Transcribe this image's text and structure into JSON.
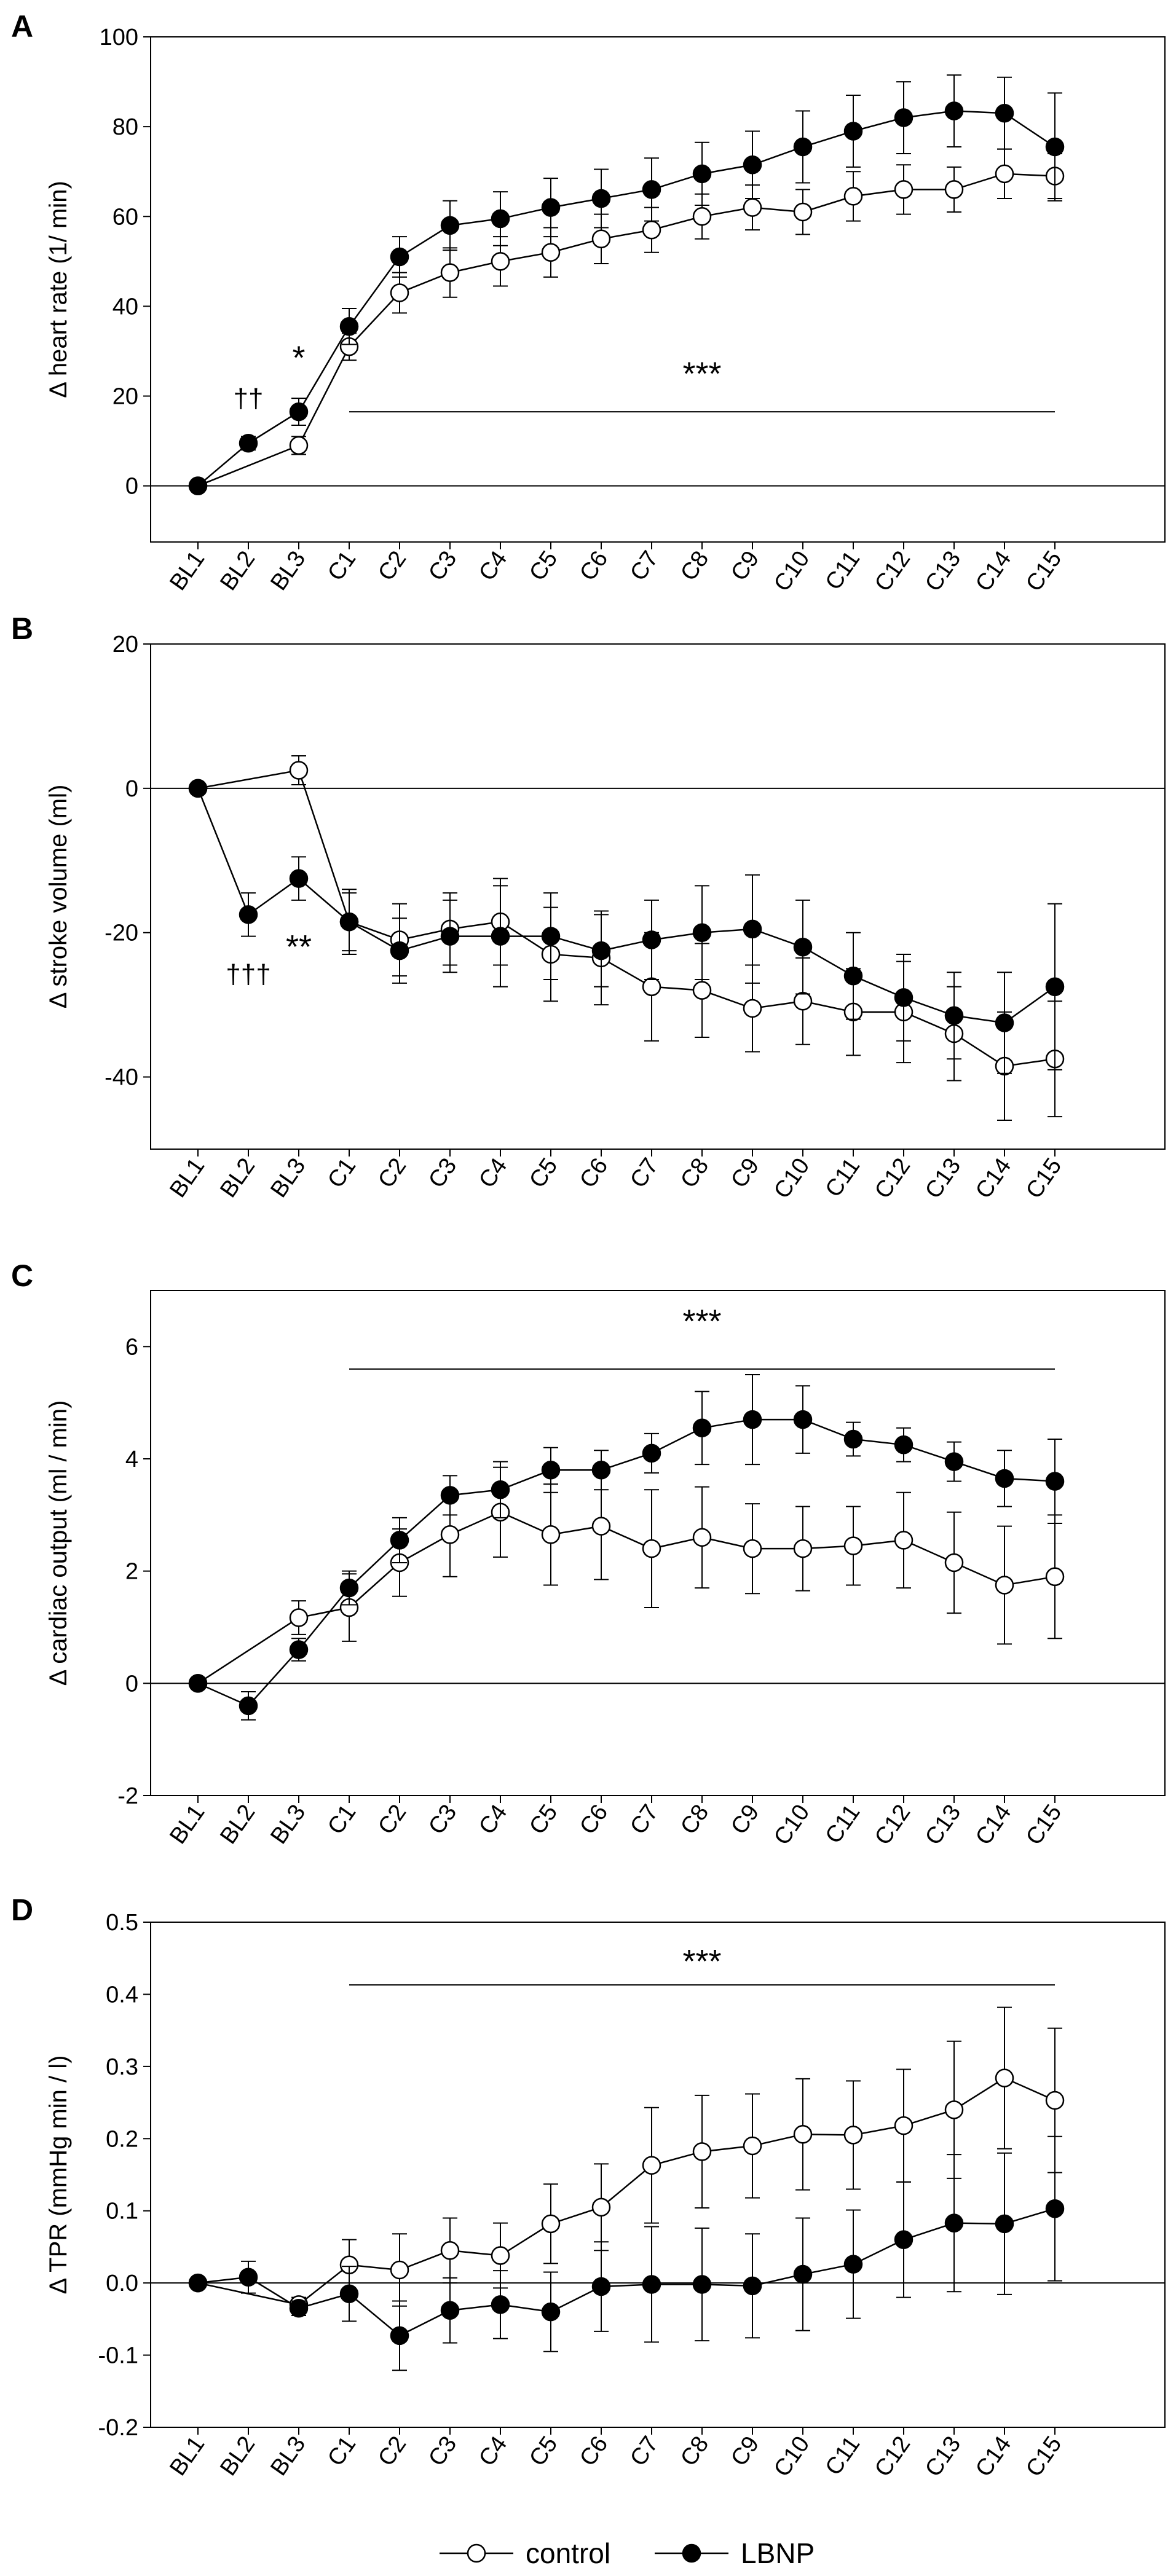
{
  "chart_data": [
    {
      "id": "A",
      "type": "line",
      "panel_label": "A",
      "ylabel": "Δ heart rate (1/ min)",
      "ylim": [
        -12.5,
        100
      ],
      "yticks": [
        0,
        20,
        40,
        60,
        80,
        100
      ],
      "categories": [
        "BL1",
        "BL2",
        "BL3",
        "C1",
        "C2",
        "C3",
        "C4",
        "C5",
        "C6",
        "C7",
        "C8",
        "C9",
        "C10",
        "C11",
        "C12",
        "C13",
        "C14",
        "C15"
      ],
      "series": [
        {
          "name": "control",
          "fill": "#ffffff",
          "values": [
            0,
            null,
            9,
            31,
            43,
            47.5,
            50,
            52,
            55,
            57,
            60,
            62,
            61,
            64.5,
            66,
            66,
            69.5,
            69
          ],
          "err": [
            0,
            null,
            2,
            3,
            4.5,
            5.5,
            5.5,
            5.5,
            5.5,
            5,
            5,
            5,
            5,
            5.5,
            5.5,
            5,
            5.5,
            5
          ]
        },
        {
          "name": "LBNP",
          "fill": "#000000",
          "values": [
            0,
            9.5,
            16.5,
            35.5,
            51,
            58,
            59.5,
            62,
            64,
            66,
            69.5,
            71.5,
            75.5,
            79,
            82,
            83.5,
            83,
            75.5
          ],
          "err": [
            0,
            1.5,
            3,
            4,
            4.5,
            5.5,
            6,
            6.5,
            6.5,
            7,
            7,
            7.5,
            8,
            8,
            8,
            8,
            8,
            12
          ]
        }
      ],
      "annotations": [
        {
          "text": "††",
          "category": "BL2",
          "y": 17.5,
          "style": "small"
        },
        {
          "text": "*",
          "category": "BL3",
          "y": 26,
          "style": "big"
        },
        {
          "text": "***",
          "category": "C8",
          "y": 22.5,
          "style": "big"
        }
      ],
      "sig_line": {
        "from": "C1",
        "to": "C15",
        "y": 16.5
      }
    },
    {
      "id": "B",
      "type": "line",
      "panel_label": "B",
      "ylabel": "Δ stroke volume (ml)",
      "ylim": [
        -50,
        20
      ],
      "yticks": [
        -40,
        -20,
        0,
        20
      ],
      "categories": [
        "BL1",
        "BL2",
        "BL3",
        "C1",
        "C2",
        "C3",
        "C4",
        "C5",
        "C6",
        "C7",
        "C8",
        "C9",
        "C10",
        "C11",
        "C12",
        "C13",
        "C14",
        "C15"
      ],
      "series": [
        {
          "name": "control",
          "fill": "#ffffff",
          "values": [
            0,
            null,
            2.5,
            -18.5,
            -21,
            -19.5,
            -18.5,
            -23,
            -23.5,
            -27.5,
            -28,
            -30.5,
            -29.5,
            -31,
            -31,
            -34,
            -38.5,
            -37.5
          ],
          "err": [
            0,
            null,
            2,
            4,
            5,
            5,
            6,
            6.5,
            6.5,
            7.5,
            6.5,
            6,
            6,
            6,
            7,
            6.5,
            7.5,
            8
          ]
        },
        {
          "name": "LBNP",
          "fill": "#000000",
          "values": [
            0,
            -17.5,
            -12.5,
            -18.5,
            -22.5,
            -20.5,
            -20.5,
            -20.5,
            -22.5,
            -21,
            -20,
            -19.5,
            -22,
            -26,
            -29,
            -31.5,
            -32.5,
            -27.5
          ],
          "err": [
            0,
            3,
            3,
            4.5,
            4.5,
            5,
            7,
            6,
            5,
            5.5,
            6.5,
            7.5,
            6.5,
            6,
            6,
            6,
            7,
            11.5
          ]
        }
      ],
      "annotations": [
        {
          "text": "†††",
          "category": "BL2",
          "y": -27,
          "style": "small"
        },
        {
          "text": "**",
          "category": "BL3",
          "y": -23.5,
          "style": "big"
        }
      ]
    },
    {
      "id": "C",
      "type": "line",
      "panel_label": "C",
      "ylabel": "Δ cardiac output (ml / min)",
      "ylim": [
        -2,
        7
      ],
      "yticks": [
        -2,
        0,
        2,
        4,
        6
      ],
      "categories": [
        "BL1",
        "BL2",
        "BL3",
        "C1",
        "C2",
        "C3",
        "C4",
        "C5",
        "C6",
        "C7",
        "C8",
        "C9",
        "C10",
        "C11",
        "C12",
        "C13",
        "C14",
        "C15"
      ],
      "series": [
        {
          "name": "control",
          "fill": "#ffffff",
          "values": [
            0,
            null,
            1.17,
            1.35,
            2.15,
            2.65,
            3.05,
            2.65,
            2.8,
            2.4,
            2.6,
            2.4,
            2.4,
            2.45,
            2.55,
            2.15,
            1.75,
            1.9
          ],
          "err": [
            0,
            null,
            0.3,
            0.6,
            0.6,
            0.75,
            0.8,
            0.9,
            0.95,
            1.05,
            0.9,
            0.8,
            0.75,
            0.7,
            0.85,
            0.9,
            1.05,
            1.1
          ]
        },
        {
          "name": "LBNP",
          "fill": "#000000",
          "values": [
            0,
            -0.4,
            0.6,
            1.7,
            2.55,
            3.35,
            3.45,
            3.8,
            3.8,
            4.1,
            4.55,
            4.7,
            4.7,
            4.35,
            4.25,
            3.95,
            3.65,
            3.6
          ],
          "err": [
            0,
            0.25,
            0.2,
            0.3,
            0.4,
            0.35,
            0.5,
            0.4,
            0.35,
            0.35,
            0.65,
            0.8,
            0.6,
            0.3,
            0.3,
            0.35,
            0.5,
            0.75
          ]
        }
      ],
      "annotations": [
        {
          "text": "***",
          "category": "C8",
          "y": 6.25,
          "style": "big"
        }
      ],
      "sig_line": {
        "from": "C1",
        "to": "C15",
        "y": 5.6
      }
    },
    {
      "id": "D",
      "type": "line",
      "panel_label": "D",
      "ylabel": "Δ TPR (mmHg min / l)",
      "ylim": [
        -0.2,
        0.5
      ],
      "yticks": [
        -0.2,
        -0.1,
        0.0,
        0.1,
        0.2,
        0.3,
        0.4,
        0.5
      ],
      "yticklabels": [
        "-0.2",
        "-0.1",
        "0.0",
        "0.1",
        "0.2",
        "0.3",
        "0.4",
        "0.5"
      ],
      "categories": [
        "BL1",
        "BL2",
        "BL3",
        "C1",
        "C2",
        "C3",
        "C4",
        "C5",
        "C6",
        "C7",
        "C8",
        "C9",
        "C10",
        "C11",
        "C12",
        "C13",
        "C14",
        "C15"
      ],
      "series": [
        {
          "name": "control",
          "fill": "#ffffff",
          "values": [
            0,
            null,
            -0.03,
            0.025,
            0.018,
            0.045,
            0.038,
            0.082,
            0.105,
            0.163,
            0.182,
            0.19,
            0.206,
            0.205,
            0.218,
            0.24,
            0.284,
            0.253
          ],
          "err": [
            0,
            null,
            0.01,
            0.035,
            0.05,
            0.045,
            0.045,
            0.055,
            0.06,
            0.08,
            0.078,
            0.072,
            0.077,
            0.075,
            0.078,
            0.095,
            0.098,
            0.1
          ]
        },
        {
          "name": "LBNP",
          "fill": "#000000",
          "values": [
            0,
            0.008,
            -0.035,
            -0.015,
            -0.073,
            -0.038,
            -0.03,
            -0.04,
            -0.005,
            -0.002,
            -0.002,
            -0.004,
            0.012,
            0.026,
            0.06,
            0.083,
            0.082,
            0.103
          ],
          "err": [
            0,
            0.022,
            0.01,
            0.038,
            0.048,
            0.045,
            0.047,
            0.055,
            0.062,
            0.08,
            0.078,
            0.072,
            0.078,
            0.075,
            0.08,
            0.095,
            0.098,
            0.1
          ]
        }
      ],
      "annotations": [
        {
          "text": "***",
          "category": "C8",
          "y": 0.43,
          "style": "big"
        }
      ],
      "sig_line": {
        "from": "C1",
        "to": "C15",
        "y": 0.413
      }
    }
  ],
  "legend": {
    "items": [
      {
        "label": "control",
        "fill": "#ffffff"
      },
      {
        "label": "LBNP",
        "fill": "#000000"
      }
    ]
  }
}
